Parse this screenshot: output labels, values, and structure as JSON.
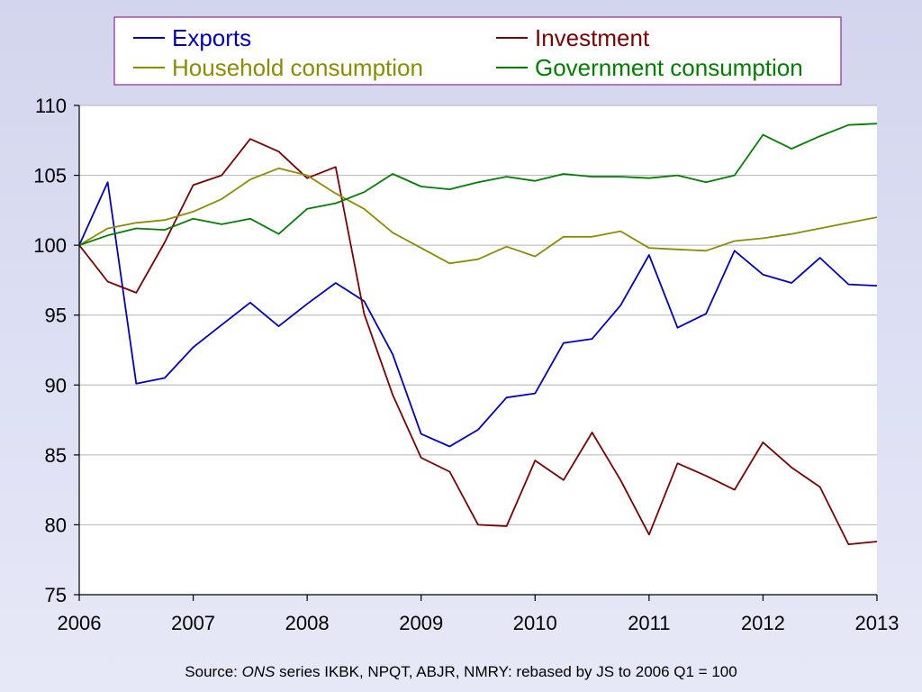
{
  "chart_data": {
    "type": "line",
    "title": "",
    "xlabel": "",
    "ylabel": "",
    "xlim": [
      2006,
      2013
    ],
    "ylim": [
      75,
      110
    ],
    "x_ticks": [
      "2006",
      "2007",
      "2008",
      "2009",
      "2010",
      "2011",
      "2012",
      "2013"
    ],
    "y_ticks": [
      "75",
      "80",
      "85",
      "90",
      "95",
      "100",
      "105",
      "110"
    ],
    "grid": "horizontal",
    "legend_position": "top",
    "x": [
      2006.0,
      2006.25,
      2006.5,
      2006.75,
      2007.0,
      2007.25,
      2007.5,
      2007.75,
      2008.0,
      2008.25,
      2008.5,
      2008.75,
      2009.0,
      2009.25,
      2009.5,
      2009.75,
      2010.0,
      2010.25,
      2010.5,
      2010.75,
      2011.0,
      2011.25,
      2011.5,
      2011.75,
      2012.0,
      2012.25,
      2012.5,
      2012.75,
      2013.0
    ],
    "series": [
      {
        "name": "Exports",
        "color": "#0000cc",
        "values": [
          100.0,
          104.5,
          90.1,
          90.5,
          92.7,
          94.3,
          95.9,
          94.2,
          95.8,
          97.3,
          96.0,
          92.2,
          86.5,
          85.6,
          86.8,
          89.1,
          89.4,
          93.0,
          93.3,
          95.7,
          99.3,
          94.1,
          95.1,
          99.6,
          97.9,
          97.3,
          99.1,
          97.2,
          97.1
        ]
      },
      {
        "name": "Investment",
        "color": "#800000",
        "values": [
          100.0,
          97.4,
          96.6,
          100.2,
          104.3,
          105.0,
          107.6,
          106.7,
          104.8,
          105.6,
          95.1,
          89.3,
          84.8,
          83.8,
          80.0,
          79.9,
          84.6,
          83.2,
          86.6,
          83.2,
          79.3,
          84.4,
          83.5,
          82.5,
          85.9,
          84.1,
          82.7,
          78.6,
          78.8
        ]
      },
      {
        "name": "Household consumption",
        "color": "#8c8c00",
        "values": [
          100.0,
          101.2,
          101.6,
          101.8,
          102.4,
          103.3,
          104.7,
          105.5,
          105.0,
          103.7,
          102.6,
          100.9,
          99.8,
          98.7,
          99.0,
          99.9,
          99.2,
          100.6,
          100.6,
          101.0,
          99.8,
          99.7,
          99.6,
          100.3,
          100.5,
          100.8,
          101.2,
          101.6,
          102.0
        ]
      },
      {
        "name": "Government consumption",
        "color": "#008000",
        "values": [
          100.0,
          100.7,
          101.2,
          101.1,
          101.9,
          101.5,
          101.9,
          100.8,
          102.6,
          103.0,
          103.8,
          105.1,
          104.2,
          104.0,
          104.5,
          104.9,
          104.6,
          105.1,
          104.9,
          104.9,
          104.8,
          105.0,
          104.5,
          105.0,
          107.9,
          106.9,
          107.8,
          108.6,
          108.7
        ]
      }
    ]
  },
  "source": {
    "prefix": "Source: ",
    "org": "ONS",
    "rest": " series IKBK, NPQT, ABJR, NMRY: rebased by JS to 2006 Q1 = 100"
  }
}
